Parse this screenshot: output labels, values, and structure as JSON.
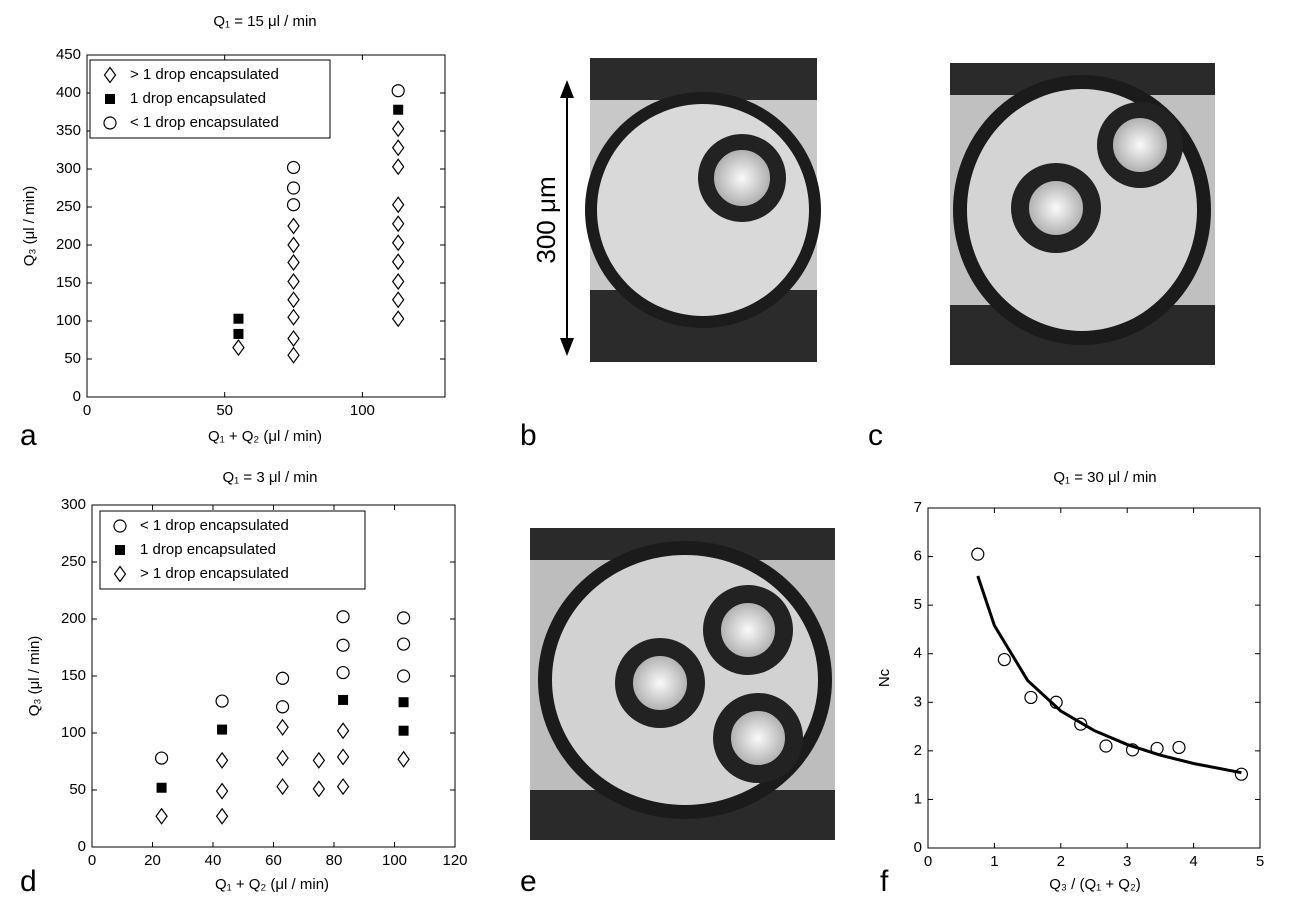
{
  "chart_data": [
    {
      "type": "scatter",
      "panel": "a",
      "title": "Q₁ = 15 μl / min",
      "x_label": "Q₁ + Q₂ (μl / min)",
      "y_label": "Q₃ (μl / min)",
      "xlim": [
        0,
        130
      ],
      "xticks": [
        0,
        50,
        100
      ],
      "ylim": [
        0,
        450
      ],
      "yticks": [
        0,
        50,
        100,
        150,
        200,
        250,
        300,
        350,
        400,
        450
      ],
      "legend": "upper left",
      "series": [
        {
          "name": "> 1 drop encapsulated",
          "marker": "diamond",
          "color": "#000000",
          "x": [
            55,
            75,
            75,
            75,
            75,
            75,
            75,
            75,
            75,
            113,
            113,
            113,
            113,
            113,
            113,
            113,
            113,
            113,
            113
          ],
          "values": [
            65,
            55,
            77,
            105,
            128,
            152,
            177,
            200,
            225,
            103,
            128,
            152,
            178,
            203,
            228,
            253,
            303,
            328,
            353
          ]
        },
        {
          "name": "1 drop encapsulated",
          "marker": "square",
          "color": "#000000",
          "x": [
            55,
            55,
            113
          ],
          "values": [
            83,
            103,
            378
          ]
        },
        {
          "name": "< 1 drop encapsulated",
          "marker": "circle",
          "color": "#000000",
          "x": [
            75,
            75,
            75,
            113
          ],
          "values": [
            253,
            275,
            302,
            403
          ]
        }
      ]
    },
    {
      "type": "scatter",
      "panel": "d",
      "title": "Q₁ = 3 μl / min",
      "x_label": "Q₁ + Q₂ (μl / min)",
      "y_label": "Q₃ (μl / min)",
      "xlim": [
        0,
        120
      ],
      "xticks": [
        0,
        20,
        40,
        60,
        80,
        100,
        120
      ],
      "ylim": [
        0,
        300
      ],
      "yticks": [
        0,
        50,
        100,
        150,
        200,
        250,
        300
      ],
      "legend": "upper left",
      "series": [
        {
          "name": "< 1 drop encapsulated",
          "marker": "circle",
          "color": "#000000",
          "x": [
            23,
            43,
            63,
            63,
            83,
            83,
            83,
            103,
            103,
            103
          ],
          "values": [
            78,
            128,
            148,
            123,
            202,
            177,
            153,
            201,
            178,
            150
          ]
        },
        {
          "name": "1 drop encapsulated",
          "marker": "square",
          "color": "#000000",
          "x": [
            23,
            43,
            83,
            103,
            103
          ],
          "values": [
            52,
            103,
            129,
            127,
            102
          ]
        },
        {
          "name": "> 1 drop encapsulated",
          "marker": "diamond",
          "color": "#000000",
          "x": [
            23,
            43,
            43,
            43,
            63,
            63,
            63,
            75,
            75,
            83,
            83,
            83,
            103
          ],
          "values": [
            27,
            76,
            49,
            27,
            105,
            78,
            53,
            76,
            51,
            102,
            79,
            53,
            77
          ]
        }
      ]
    },
    {
      "type": "scatter",
      "panel": "f",
      "title": "Q₁ = 30 μl / min",
      "x_label": "Q₃ / (Q₁ + Q₂)",
      "y_label": "Nc",
      "xlim": [
        0,
        5
      ],
      "xticks": [
        0,
        1,
        2,
        3,
        4,
        5
      ],
      "ylim": [
        0,
        7
      ],
      "yticks": [
        0,
        1,
        2,
        3,
        4,
        5,
        6,
        7
      ],
      "series": [
        {
          "marker": "circle",
          "color": "#000000",
          "x": [
            0.75,
            1.15,
            1.55,
            1.93,
            2.3,
            2.68,
            3.08,
            3.45,
            3.78,
            4.72
          ],
          "values": [
            6.05,
            3.88,
            3.1,
            3.0,
            2.55,
            2.1,
            2.02,
            2.05,
            2.07,
            1.52
          ]
        },
        {
          "marker": "line",
          "color": "#000000",
          "x": [
            0.75,
            1,
            1.5,
            2,
            2.5,
            3,
            3.5,
            4,
            4.72
          ],
          "values": [
            5.6,
            4.58,
            3.45,
            2.82,
            2.42,
            2.13,
            1.91,
            1.74,
            1.55
          ]
        }
      ]
    }
  ],
  "images": [
    {
      "panel": "b",
      "scale_bar": "300 μm"
    },
    {
      "panel": "c"
    },
    {
      "panel": "e"
    }
  ]
}
